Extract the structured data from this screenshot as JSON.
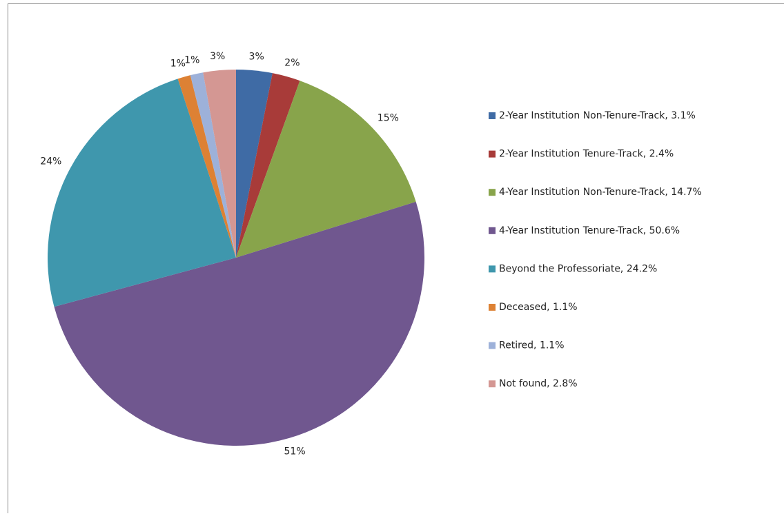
{
  "chart_data": {
    "type": "pie",
    "categories": [
      "2-Year Institution Non-Tenure-Track, 3.1%",
      "2-Year Institution Tenure-Track, 2.4%",
      "4-Year Institution Non-Tenure-Track, 14.7%",
      "4-Year Institution Tenure-Track, 50.6%",
      "Beyond the Professoriate, 24.2%",
      "Deceased, 1.1%",
      "Retired, 1.1%",
      "Not found, 2.8%"
    ],
    "values": [
      3.1,
      2.4,
      14.7,
      50.6,
      24.2,
      1.1,
      1.1,
      2.8
    ],
    "value_labels": [
      "3%",
      "2%",
      "15%",
      "51%",
      "24%",
      "1%",
      "1%",
      "3%"
    ],
    "colors": [
      "#3f6ba5",
      "#a83b39",
      "#88a44b",
      "#70578f",
      "#3f97ad",
      "#dd8134",
      "#9db1d9",
      "#d49793"
    ],
    "legend": "right"
  }
}
